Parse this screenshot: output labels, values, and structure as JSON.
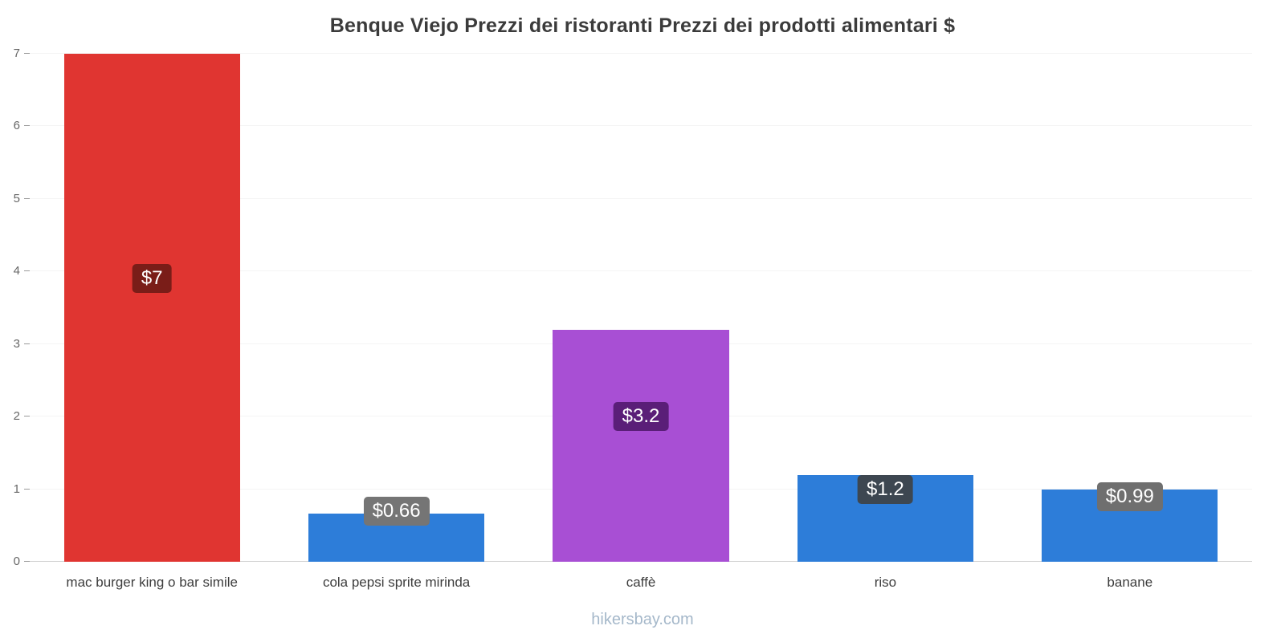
{
  "chart_data": {
    "type": "bar",
    "title": "Benque Viejo Prezzi dei ristoranti Prezzi dei prodotti alimentari $",
    "categories": [
      "mac burger king o bar simile",
      "cola pepsi sprite mirinda",
      "caffè",
      "riso",
      "banane"
    ],
    "values": [
      7,
      0.66,
      3.2,
      1.2,
      0.99
    ],
    "value_labels": [
      "$7",
      "$0.66",
      "$3.2",
      "$1.2",
      "$0.99"
    ],
    "bar_colors": [
      "#e03531",
      "#2d7dd9",
      "#a84fd4",
      "#2d7dd9",
      "#2d7dd9"
    ],
    "badge_colors": [
      "#7a1d18",
      "#757575",
      "#5a1e78",
      "#3d4751",
      "#6f6f6f"
    ],
    "badge_center_values": [
      3.9,
      0.7,
      2.0,
      1.0,
      0.9
    ],
    "xlabel": "",
    "ylabel": "",
    "ylim": [
      0,
      7
    ],
    "ytick_step": 1,
    "yticks": [
      0,
      1,
      2,
      3,
      4,
      5,
      6,
      7
    ],
    "grid": true,
    "legend": "none",
    "currency": "$"
  },
  "footer": {
    "text": "hikersbay.com"
  }
}
